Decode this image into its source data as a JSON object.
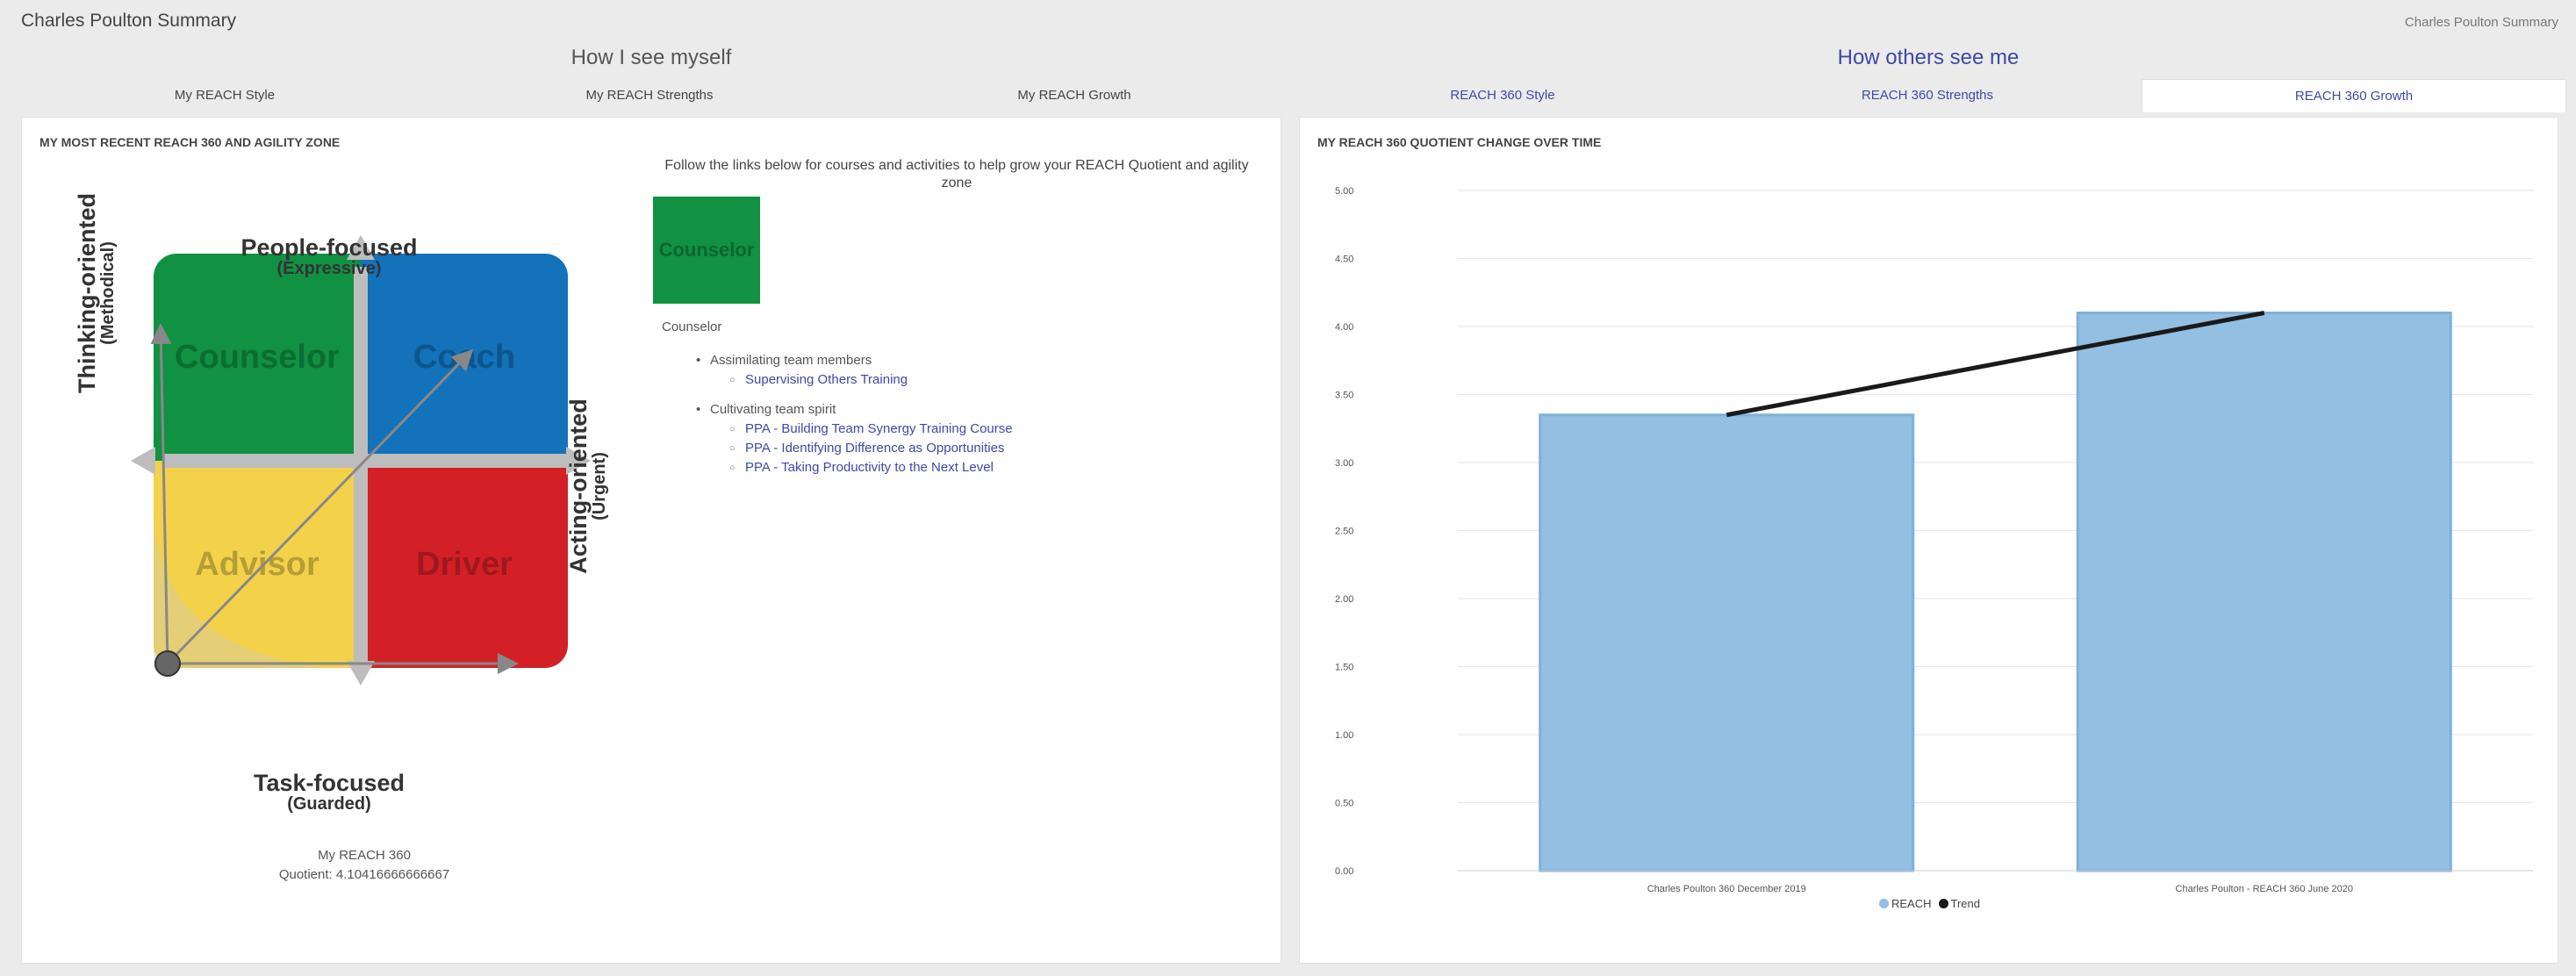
{
  "header": {
    "app_title": "Charles Poulton Summary",
    "breadcrumb": "Charles Poulton Summary"
  },
  "sections": {
    "self_title": "How I see myself",
    "others_title": "How others see me"
  },
  "tabs": [
    {
      "label": "My REACH Style",
      "active": false
    },
    {
      "label": "My REACH Strengths",
      "active": false
    },
    {
      "label": "My REACH Growth",
      "active": false
    },
    {
      "label": "REACH 360 Style",
      "active": false
    },
    {
      "label": "REACH 360 Strengths",
      "active": false
    },
    {
      "label": "REACH 360 Growth",
      "active": true
    }
  ],
  "zone_panel": {
    "title": "MY MOST RECENT REACH 360 AND AGILITY ZONE",
    "quadrants": {
      "counselor": "Counselor",
      "coach": "Coach",
      "advisor": "Advisor",
      "driver": "Driver"
    },
    "colors": {
      "counselor": "#119142",
      "coach": "#1372ba",
      "advisor": "#f3d24a",
      "driver": "#d32027"
    },
    "axes": {
      "top": "People-focused",
      "top_sub": "(Expressive)",
      "bottom": "Task-focused",
      "bottom_sub": "(Guarded)",
      "left": "Thinking-oriented",
      "left_sub": "(Methodical)",
      "right": "Acting-oriented",
      "right_sub": "(Urgent)"
    },
    "score_label": "My REACH 360",
    "score_value": "Quotient: 4.10416666666667",
    "follow_text": "Follow the links below for courses and activities to help grow your REACH Quotient and agility zone",
    "zone_swatch": "Counselor",
    "zone_name": "Counselor",
    "development": [
      {
        "title": "Assimilating team members",
        "links": [
          "Supervising Others Training"
        ]
      },
      {
        "title": "Cultivating team spirit",
        "links": [
          "PPA - Building Team Synergy Training Course",
          "PPA - Identifying Difference as Opportunities",
          "PPA - Taking Productivity to the Next Level"
        ]
      }
    ]
  },
  "chart_panel": {
    "title": "MY REACH 360 QUOTIENT CHANGE OVER TIME",
    "legend_reach": "REACH",
    "legend_trend": "Trend"
  },
  "chart_data": {
    "type": "bar",
    "categories": [
      "Charles Poulton 360 December 2019",
      "Charles Poulton - REACH 360 June 2020"
    ],
    "series": [
      {
        "name": "REACH",
        "type": "bar",
        "values": [
          3.35,
          4.1
        ],
        "color": "#93bfe2"
      },
      {
        "name": "Trend",
        "type": "line",
        "values": [
          3.35,
          4.1
        ],
        "color": "#1a1a1a"
      }
    ],
    "y_ticks": [
      "0.00",
      "0.50",
      "1.00",
      "1.50",
      "2.00",
      "2.50",
      "3.00",
      "3.50",
      "4.00",
      "4.50",
      "5.00"
    ],
    "ylim": [
      0,
      5
    ],
    "grid": true,
    "legend_position": "bottom"
  }
}
